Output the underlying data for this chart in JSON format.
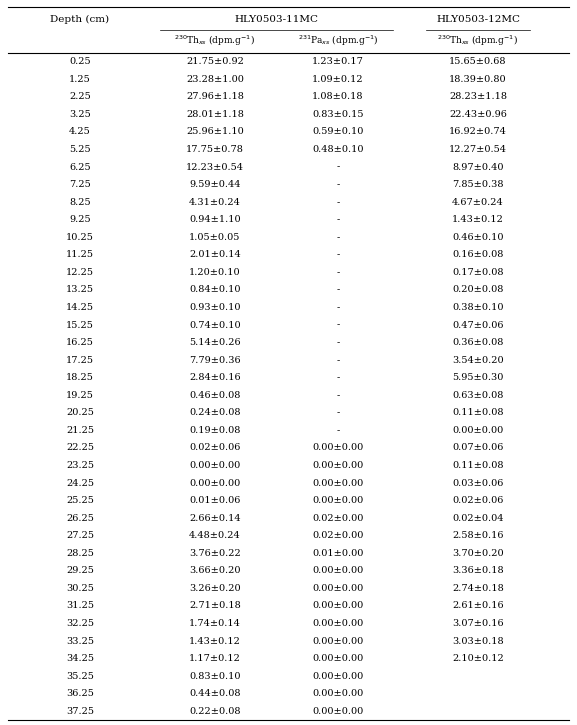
{
  "col1_header": "Depth (cm)",
  "col2_header": "HLY0503-11MC",
  "col3_header": "HLY0503-12MC",
  "sub_col1": "230Thxs (dpm.g-1)",
  "sub_col2": "231Paxs (dpm.g-1)",
  "sub_col3": "230Thxs (dpm.g-1)",
  "rows": [
    [
      "0.25",
      "21.75±0.92",
      "1.23±0.17",
      "15.65±0.68"
    ],
    [
      "1.25",
      "23.28±1.00",
      "1.09±0.12",
      "18.39±0.80"
    ],
    [
      "2.25",
      "27.96±1.18",
      "1.08±0.18",
      "28.23±1.18"
    ],
    [
      "3.25",
      "28.01±1.18",
      "0.83±0.15",
      "22.43±0.96"
    ],
    [
      "4.25",
      "25.96±1.10",
      "0.59±0.10",
      "16.92±0.74"
    ],
    [
      "5.25",
      "17.75±0.78",
      "0.48±0.10",
      "12.27±0.54"
    ],
    [
      "6.25",
      "12.23±0.54",
      "-",
      "8.97±0.40"
    ],
    [
      "7.25",
      "9.59±0.44",
      "-",
      "7.85±0.38"
    ],
    [
      "8.25",
      "4.31±0.24",
      "-",
      "4.67±0.24"
    ],
    [
      "9.25",
      "0.94±1.10",
      "-",
      "1.43±0.12"
    ],
    [
      "10.25",
      "1.05±0.05",
      "-",
      "0.46±0.10"
    ],
    [
      "11.25",
      "2.01±0.14",
      "-",
      "0.16±0.08"
    ],
    [
      "12.25",
      "1.20±0.10",
      "-",
      "0.17±0.08"
    ],
    [
      "13.25",
      "0.84±0.10",
      "-",
      "0.20±0.08"
    ],
    [
      "14.25",
      "0.93±0.10",
      "-",
      "0.38±0.10"
    ],
    [
      "15.25",
      "0.74±0.10",
      "-",
      "0.47±0.06"
    ],
    [
      "16.25",
      "5.14±0.26",
      "-",
      "0.36±0.08"
    ],
    [
      "17.25",
      "7.79±0.36",
      "-",
      "3.54±0.20"
    ],
    [
      "18.25",
      "2.84±0.16",
      "-",
      "5.95±0.30"
    ],
    [
      "19.25",
      "0.46±0.08",
      "-",
      "0.63±0.08"
    ],
    [
      "20.25",
      "0.24±0.08",
      "-",
      "0.11±0.08"
    ],
    [
      "21.25",
      "0.19±0.08",
      "-",
      "0.00±0.00"
    ],
    [
      "22.25",
      "0.02±0.06",
      "0.00±0.00",
      "0.07±0.06"
    ],
    [
      "23.25",
      "0.00±0.00",
      "0.00±0.00",
      "0.11±0.08"
    ],
    [
      "24.25",
      "0.00±0.00",
      "0.00±0.00",
      "0.03±0.06"
    ],
    [
      "25.25",
      "0.01±0.06",
      "0.00±0.00",
      "0.02±0.06"
    ],
    [
      "26.25",
      "2.66±0.14",
      "0.02±0.00",
      "0.02±0.04"
    ],
    [
      "27.25",
      "4.48±0.24",
      "0.02±0.00",
      "2.58±0.16"
    ],
    [
      "28.25",
      "3.76±0.22",
      "0.01±0.00",
      "3.70±0.20"
    ],
    [
      "29.25",
      "3.66±0.20",
      "0.00±0.00",
      "3.36±0.18"
    ],
    [
      "30.25",
      "3.26±0.20",
      "0.00±0.00",
      "2.74±0.18"
    ],
    [
      "31.25",
      "2.71±0.18",
      "0.00±0.00",
      "2.61±0.16"
    ],
    [
      "32.25",
      "1.74±0.14",
      "0.00±0.00",
      "3.07±0.16"
    ],
    [
      "33.25",
      "1.43±0.12",
      "0.00±0.00",
      "3.03±0.18"
    ],
    [
      "34.25",
      "1.17±0.12",
      "0.00±0.00",
      "2.10±0.12"
    ],
    [
      "35.25",
      "0.83±0.10",
      "0.00±0.00",
      ""
    ],
    [
      "36.25",
      "0.44±0.08",
      "0.00±0.00",
      ""
    ],
    [
      "37.25",
      "0.22±0.08",
      "0.00±0.00",
      ""
    ]
  ],
  "bg_color": "#ffffff",
  "text_color": "#000000",
  "line_color": "#000000",
  "font_size": 7.0,
  "header_font_size": 7.5,
  "sub_font_size": 6.5
}
